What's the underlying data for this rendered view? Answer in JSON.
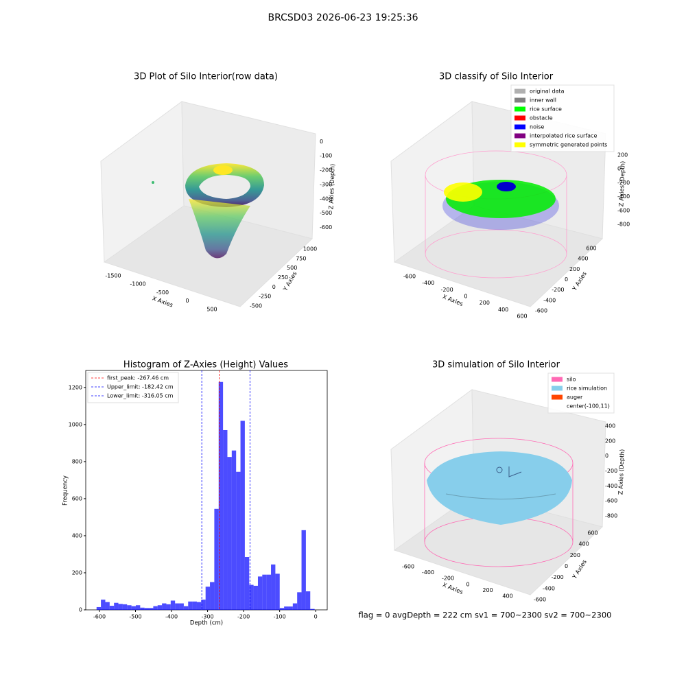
{
  "title": "BRCSD03 2026-06-23 19:25:36",
  "footer": "flag = 0     avgDepth = 222 cm  sv1 = 700~2300  sv2 = 700~2300",
  "chart_data": [
    {
      "type": "scatter3d",
      "title": "3D Plot of Silo Interior(row data)",
      "xlabel": "X Axies",
      "ylabel": "Y Axies",
      "zlabel": "Z Axies (Depth)",
      "xlim": [
        -1700,
        750
      ],
      "xticks": [
        -1500,
        -1000,
        -500,
        0,
        500
      ],
      "ylim": [
        -600,
        1100
      ],
      "yticks": [
        -500,
        -250,
        0,
        250,
        500,
        750,
        1000
      ],
      "zlim": [
        -650,
        30
      ],
      "zticks": [
        0,
        -100,
        -200,
        -300,
        -400,
        -500,
        -600
      ]
    },
    {
      "type": "scatter3d",
      "title": "3D classify of Silo Interior",
      "xlabel": "X Axies",
      "ylabel": "Y Axies",
      "zlabel": "Z Axies (Depth)",
      "xlim": [
        -700,
        650
      ],
      "xticks": [
        -600,
        -400,
        -200,
        0,
        200,
        400,
        600
      ],
      "ylim": [
        -700,
        700
      ],
      "yticks": [
        -600,
        -400,
        -200,
        0,
        200,
        400,
        600
      ],
      "zlim": [
        -900,
        300
      ],
      "zticks": [
        200,
        0,
        -200,
        -400,
        -600,
        -800
      ],
      "legend": [
        {
          "name": "original data",
          "color": "#b0b0b0"
        },
        {
          "name": "inner wall",
          "color": "#808080"
        },
        {
          "name": "rice surface",
          "color": "#00ff00"
        },
        {
          "name": "obstacle",
          "color": "#ff0000"
        },
        {
          "name": "noise",
          "color": "#0000ff"
        },
        {
          "name": "interpolated rice surface",
          "color": "#800080"
        },
        {
          "name": "symmetric generated points",
          "color": "#ffff00"
        }
      ]
    },
    {
      "type": "histogram",
      "title": "Histogram of Z-Axies (Height) Values",
      "xlabel": "Depth (cm)",
      "ylabel": "Frequency",
      "color": "#0000ff",
      "bins": [
        -608,
        -595.9,
        -583.8,
        -571.7,
        -559.6,
        -547.5,
        -535.4,
        -523.3,
        -511.2,
        -499.1,
        -487,
        -474.9,
        -462.8,
        -450.7,
        -438.6,
        -426.5,
        -414.4,
        -402.3,
        -390.2,
        -378.1,
        -366,
        -353.9,
        -341.8,
        -329.7,
        -317.6,
        -305.5,
        -293.4,
        -281.3,
        -269.2,
        -257.1,
        -245,
        -232.9,
        -220.8,
        -208.7,
        -196.6,
        -184.5,
        -172.4,
        -160.3,
        -148.2,
        -136.1,
        -124,
        -111.9,
        -99.8,
        -87.7,
        -75.6,
        -63.5,
        -51.4,
        -39.3,
        -27.2,
        -15.1,
        -3
      ],
      "values": [
        15,
        55,
        42,
        22,
        38,
        32,
        30,
        25,
        20,
        25,
        12,
        10,
        10,
        20,
        25,
        35,
        30,
        50,
        35,
        35,
        20,
        45,
        45,
        42,
        55,
        125,
        150,
        545,
        1230,
        970,
        825,
        860,
        745,
        1020,
        285,
        135,
        130,
        180,
        190,
        190,
        245,
        195,
        10,
        18,
        18,
        35,
        95,
        430,
        100,
        5
      ],
      "xlim": [
        -638,
        32
      ],
      "xticks": [
        -600,
        -500,
        -400,
        -300,
        -200,
        -100,
        0
      ],
      "ylim": [
        0,
        1292
      ],
      "yticks": [
        0,
        200,
        400,
        600,
        800,
        1000,
        1200
      ],
      "lines": [
        {
          "name": "first_peak: -267.46 cm",
          "value": -267.46,
          "color": "#ff0000"
        },
        {
          "name": "Upper_limit: -182.42 cm",
          "value": -182.42,
          "color": "#0000ff"
        },
        {
          "name": "Lower_limit: -316.05 cm",
          "value": -316.05,
          "color": "#0000ff"
        }
      ]
    },
    {
      "type": "surface3d",
      "title": "3D simulation of Silo Interior",
      "xlabel": "X Axies",
      "ylabel": "Y Axies",
      "zlabel": "Z Axies (Depth)",
      "xlim": [
        -700,
        550
      ],
      "xticks": [
        -600,
        -400,
        -200,
        0,
        200,
        400
      ],
      "ylim": [
        -700,
        700
      ],
      "yticks": [
        -600,
        -400,
        -200,
        0,
        200,
        400,
        600
      ],
      "zlim": [
        -900,
        500
      ],
      "zticks": [
        400,
        200,
        0,
        -200,
        -400,
        -600,
        -800
      ],
      "legend": [
        {
          "name": "silo",
          "color": "#ff69b4"
        },
        {
          "name": "rice simulation",
          "color": "#87ceeb"
        },
        {
          "name": "auger",
          "color": "#ff4500"
        },
        {
          "name": "center(-100,11)",
          "color": null
        }
      ]
    }
  ]
}
